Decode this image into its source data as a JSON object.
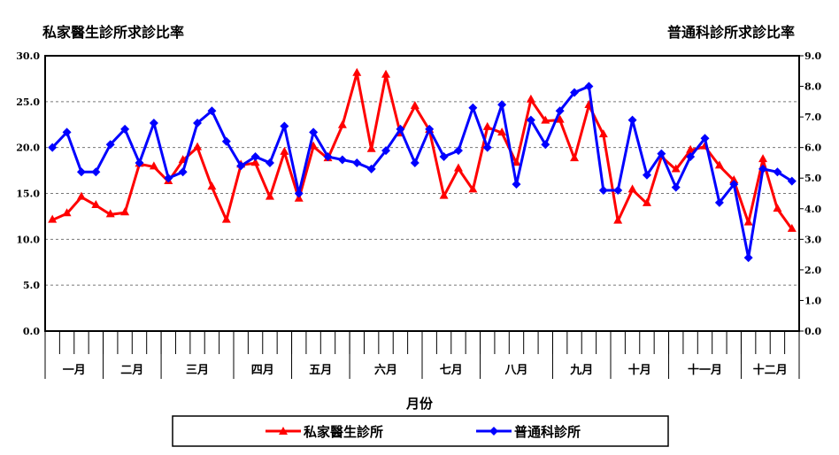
{
  "chart_data": {
    "type": "line",
    "left_title": "私家醫生診所求診比率",
    "right_title": "普通科診所求診比率",
    "xlabel": "月份",
    "months": [
      "一月",
      "二月",
      "三月",
      "四月",
      "五月",
      "六月",
      "七月",
      "八月",
      "九月",
      "十月",
      "十一月",
      "十二月"
    ],
    "weeks_per_month": [
      4,
      4,
      5,
      4,
      4,
      5,
      4,
      5,
      4,
      4,
      5,
      4
    ],
    "y_left": {
      "min": 0,
      "max": 30,
      "step": 5,
      "ticks": [
        "0.0",
        "5.0",
        "10.0",
        "15.0",
        "20.0",
        "25.0",
        "30.0"
      ]
    },
    "y_right": {
      "min": 0,
      "max": 9,
      "step": 1,
      "ticks": [
        "0.0",
        "1.0",
        "2.0",
        "3.0",
        "4.0",
        "5.0",
        "6.0",
        "7.0",
        "8.0",
        "9.0"
      ]
    },
    "grid": "horizontal dashed",
    "legend_position": "bottom",
    "series": [
      {
        "name": "私家醫生診所",
        "axis": "left",
        "color": "#ff0000",
        "marker": "triangle",
        "values": [
          12.1,
          12.8,
          14.6,
          13.7,
          12.7,
          12.9,
          18.2,
          17.9,
          16.3,
          18.6,
          20.0,
          15.7,
          12.1,
          18.1,
          18.3,
          14.6,
          19.5,
          14.4,
          20.1,
          18.8,
          22.4,
          28.1,
          19.8,
          27.9,
          21.5,
          24.5,
          21.9,
          14.7,
          17.7,
          15.4,
          22.2,
          21.6,
          18.3,
          25.2,
          22.9,
          23.0,
          18.8,
          24.6,
          21.4,
          12.0,
          15.4,
          13.9,
          19.0,
          17.6,
          19.7,
          20.1,
          18.0,
          16.4,
          11.8,
          18.7,
          13.3,
          11.1
        ]
      },
      {
        "name": "普通科診所",
        "axis": "right",
        "color": "#0000ff",
        "marker": "diamond",
        "values": [
          6.0,
          6.5,
          5.2,
          5.2,
          6.1,
          6.6,
          5.5,
          6.8,
          5.0,
          5.2,
          6.8,
          7.2,
          6.2,
          5.4,
          5.7,
          5.5,
          6.7,
          4.5,
          6.5,
          5.7,
          5.6,
          5.5,
          5.3,
          5.9,
          6.6,
          5.5,
          6.6,
          5.7,
          5.9,
          7.3,
          6.0,
          7.4,
          4.8,
          6.9,
          6.1,
          7.2,
          7.8,
          8.0,
          4.6,
          4.6,
          6.9,
          5.1,
          5.8,
          4.7,
          5.7,
          6.3,
          4.2,
          4.8,
          2.4,
          5.3,
          5.2,
          4.9
        ]
      }
    ]
  }
}
